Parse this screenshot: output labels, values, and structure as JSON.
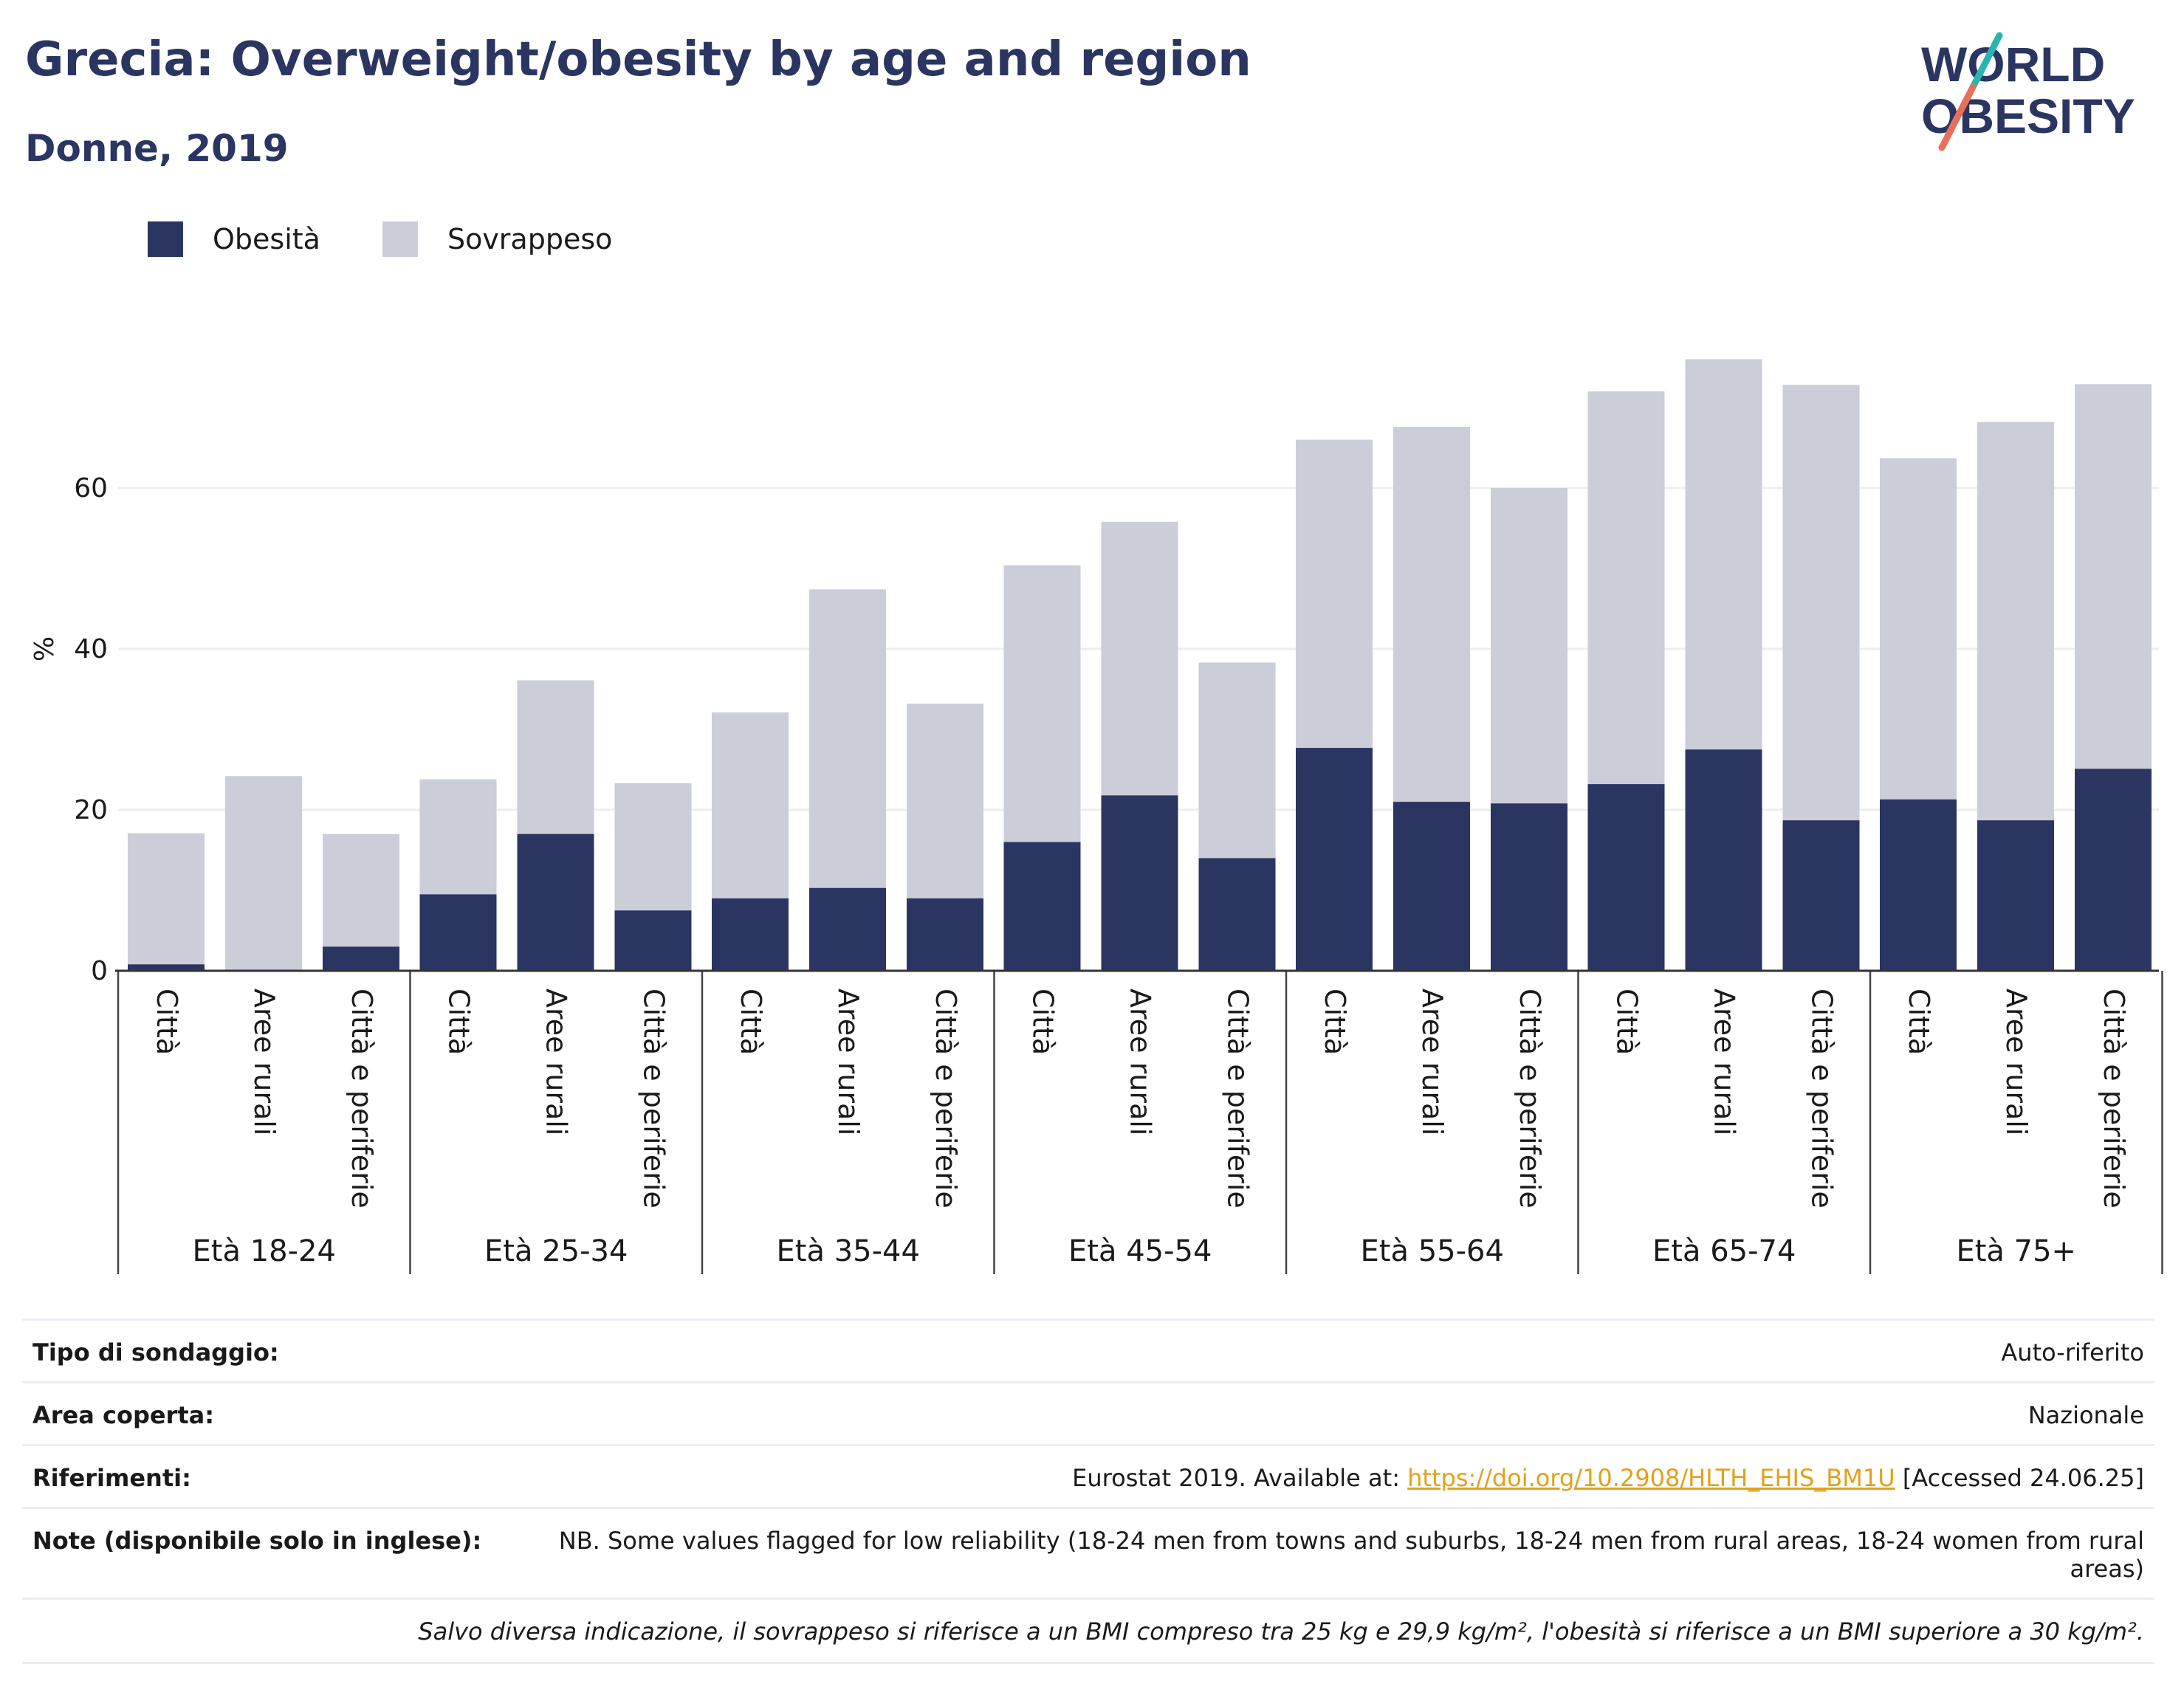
{
  "title": "Grecia: Overweight/obesity by age and region",
  "subtitle": "Donne, 2019",
  "logo": {
    "line1": "WORLD",
    "line2": "OBESITY"
  },
  "legend": [
    {
      "label": "Obesità",
      "color": "#2b3561"
    },
    {
      "label": "Sovrappeso",
      "color": "#cbcdd9"
    }
  ],
  "chart_data": {
    "type": "bar",
    "stacked": true,
    "ylabel": "%",
    "ylim": [
      0,
      80
    ],
    "yticks": [
      0,
      20,
      40,
      60
    ],
    "grid": true,
    "legend_position": "top-left",
    "groups": [
      {
        "label": "Età 18-24",
        "categories": [
          "Città",
          "Aree rurali",
          "Città e periferie"
        ]
      },
      {
        "label": "Età 25-34",
        "categories": [
          "Città",
          "Aree rurali",
          "Città e periferie"
        ]
      },
      {
        "label": "Età 35-44",
        "categories": [
          "Città",
          "Aree rurali",
          "Città e periferie"
        ]
      },
      {
        "label": "Età 45-54",
        "categories": [
          "Città",
          "Aree rurali",
          "Città e periferie"
        ]
      },
      {
        "label": "Età 55-64",
        "categories": [
          "Città",
          "Aree rurali",
          "Città e periferie"
        ]
      },
      {
        "label": "Età 65-74",
        "categories": [
          "Città",
          "Aree rurali",
          "Città e periferie"
        ]
      },
      {
        "label": "Età 75+",
        "categories": [
          "Città",
          "Aree rurali",
          "Città e periferie"
        ]
      }
    ],
    "series": [
      {
        "name": "Obesità",
        "color": "#2b3561",
        "values": [
          0.8,
          0.0,
          3.0,
          9.5,
          17.0,
          7.5,
          9.0,
          10.3,
          9.0,
          16.0,
          21.8,
          14.0,
          27.7,
          21.0,
          20.8,
          23.2,
          27.5,
          18.7,
          21.3,
          18.7,
          25.1
        ]
      },
      {
        "name": "Sovrappeso",
        "color": "#cbcdd9",
        "values": [
          16.3,
          24.2,
          14.0,
          14.3,
          19.1,
          15.8,
          23.1,
          37.1,
          24.2,
          34.4,
          34.0,
          24.3,
          38.3,
          46.6,
          39.2,
          48.8,
          48.5,
          54.1,
          42.4,
          49.5,
          47.8
        ]
      }
    ]
  },
  "info": {
    "survey_type": {
      "key": "Tipo di sondaggio:",
      "value": "Auto-riferito"
    },
    "area": {
      "key": "Area coperta:",
      "value": "Nazionale"
    },
    "references": {
      "key": "Riferimenti:",
      "prefix": "Eurostat 2019. Available at: ",
      "link": "https://doi.org/10.2908/HLTH_EHIS_BM1U",
      "suffix": " [Accessed 24.06.25]"
    },
    "notes": {
      "key": "Note (disponibile solo in inglese):",
      "value": "NB. Some values flagged for low reliability (18-24 men from towns and suburbs, 18-24 men from rural areas, 18-24 women from rural areas)"
    },
    "footnote": "Salvo diversa indicazione, il sovrappeso si riferisce a un BMI compreso tra 25 kg e 29,9 kg/m², l'obesità si riferisce a un BMI superiore a 30 kg/m²."
  }
}
